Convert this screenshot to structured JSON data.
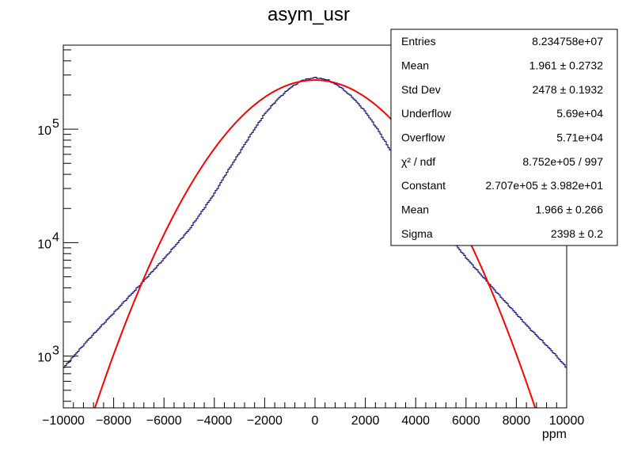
{
  "chart_data": {
    "type": "line",
    "title": "asym_usr",
    "xlabel": "ppm",
    "ylabel": "",
    "xlim": [
      -10000,
      10000
    ],
    "ylim": [
      350,
      550000
    ],
    "y_scale": "log",
    "grid": false,
    "x_ticks": [
      {
        "value": -10000,
        "label": "−10000"
      },
      {
        "value": -8000,
        "label": "−8000"
      },
      {
        "value": -6000,
        "label": "−6000"
      },
      {
        "value": -4000,
        "label": "−4000"
      },
      {
        "value": -2000,
        "label": "−2000"
      },
      {
        "value": 0,
        "label": "0"
      },
      {
        "value": 2000,
        "label": "2000"
      },
      {
        "value": 4000,
        "label": "4000"
      },
      {
        "value": 6000,
        "label": "6000"
      },
      {
        "value": 8000,
        "label": "8000"
      },
      {
        "value": 10000,
        "label": "10000"
      }
    ],
    "y_ticks": [
      {
        "value": 1000,
        "base": "10",
        "exp": "3"
      },
      {
        "value": 10000,
        "base": "10",
        "exp": "4"
      },
      {
        "value": 100000,
        "base": "10",
        "exp": "5"
      }
    ],
    "series": [
      {
        "kind": "histogram",
        "color": "#000080",
        "x": [
          -10000,
          -9500,
          -9000,
          -8500,
          -8000,
          -7500,
          -7000,
          -6500,
          -6000,
          -5500,
          -5000,
          -4500,
          -4000,
          -3500,
          -3000,
          -2500,
          -2000,
          -1500,
          -1000,
          -500,
          0,
          500,
          1000,
          1500,
          2000,
          2500,
          3000,
          3500,
          4000,
          4500,
          5000,
          6000,
          6500,
          7000,
          7500,
          8000,
          8500,
          9000,
          9500,
          10000
        ],
        "y": [
          780,
          1050,
          1400,
          1830,
          2400,
          3150,
          4120,
          5450,
          7200,
          9700,
          13000,
          18700,
          27000,
          41500,
          62000,
          93000,
          136000,
          182000,
          230000,
          270000,
          285000,
          272000,
          236000,
          190000,
          143000,
          99000,
          65000,
          43000,
          28000,
          19400,
          14000,
          7400,
          5520,
          4140,
          3120,
          2360,
          1780,
          1380,
          1060,
          790
        ]
      },
      {
        "kind": "gaussian-fit",
        "color": "#ff0000",
        "constant": 270700,
        "mean": 1.966,
        "sigma": 2398
      }
    ],
    "legend": "top-right",
    "stats": [
      {
        "label": "Entries",
        "value": "8.234758e+07"
      },
      {
        "label": "Mean",
        "value": "1.961  ± 0.2732"
      },
      {
        "label": "Std Dev",
        "value": "2478  ± 0.1932"
      },
      {
        "label": "Underflow",
        "value": "5.69e+04"
      },
      {
        "label": "Overflow",
        "value": "5.71e+04"
      },
      {
        "label": "χ² / ndf",
        "value": "8.752e+05 / 997"
      },
      {
        "label": "Constant",
        "value": "2.707e+05  ± 3.982e+01"
      },
      {
        "label": "Mean",
        "value": "1.966  ± 0.266"
      },
      {
        "label": "Sigma",
        "value": "2398  ± 0.2"
      }
    ]
  }
}
